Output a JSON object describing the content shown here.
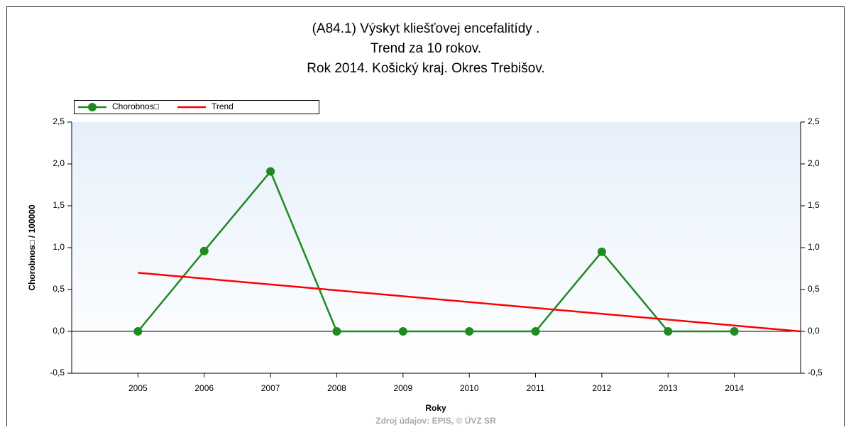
{
  "chart_data": {
    "type": "line",
    "title": [
      "(A84.1) Výskyt kliešťovej encefalitídy .",
      "Trend za 10 rokov.",
      "Rok 2014. Košický kraj. Okres Trebišov."
    ],
    "x_label": "Roky",
    "y_label": "Chorobnos□ / 100000",
    "source": "Zdroj údajov: EPIS, © ÚVZ SR",
    "xlim": [
      2004,
      2015
    ],
    "xticks": [
      2005,
      2006,
      2007,
      2008,
      2009,
      2010,
      2011,
      2012,
      2013,
      2014
    ],
    "ylim": [
      -0.5,
      2.5
    ],
    "yticks": [
      {
        "value": -0.5,
        "label": "-0,5"
      },
      {
        "value": 0,
        "label": "0,0"
      },
      {
        "value": 0.5,
        "label": "0,5"
      },
      {
        "value": 1,
        "label": "1,0"
      },
      {
        "value": 1.5,
        "label": "1,5"
      },
      {
        "value": 2,
        "label": "2,0"
      },
      {
        "value": 2.5,
        "label": "2,5"
      }
    ],
    "series": [
      {
        "name": "Chorobnos□",
        "color": "#1f8a1f",
        "markers": true,
        "x": [
          2005,
          2006,
          2007,
          2008,
          2009,
          2010,
          2011,
          2012,
          2013,
          2014
        ],
        "values": [
          0,
          0.96,
          1.91,
          0,
          0,
          0,
          0,
          0.95,
          0,
          0
        ]
      },
      {
        "name": "Trend",
        "color": "#ff0000",
        "markers": false,
        "x": [
          2005,
          2015
        ],
        "values": [
          0.7,
          0
        ]
      }
    ]
  }
}
